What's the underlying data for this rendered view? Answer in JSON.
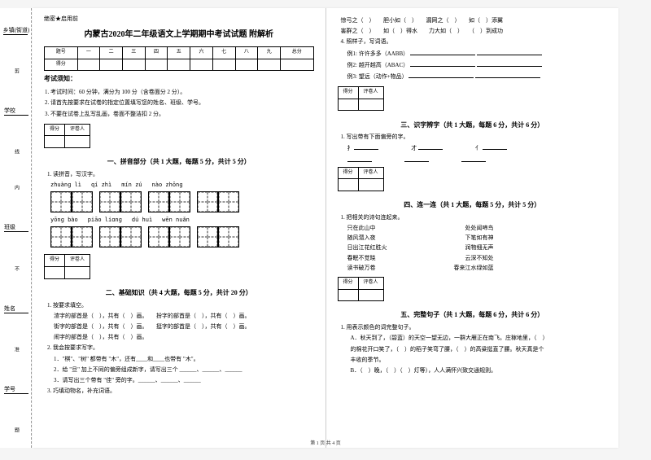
{
  "binding": {
    "seal": "密",
    "village_label": "乡镇(街道)",
    "cut": "剪",
    "school_label": "学校",
    "line": "线",
    "inner": "内",
    "class_label": "班级",
    "no": "不",
    "name_label": "姓名",
    "allow": "准",
    "number_label": "学号",
    "answer": "题"
  },
  "header": {
    "seal": "绝密★启用前",
    "title": "内蒙古2020年二年级语文上学期期中考试试题 附解析"
  },
  "score_table": {
    "headers": [
      "题号",
      "一",
      "二",
      "三",
      "四",
      "五",
      "六",
      "七",
      "八",
      "九",
      "总分"
    ],
    "row_label": "得分"
  },
  "notice": {
    "title": "考试须知：",
    "items": [
      "考试时间：60 分钟，满分为 100 分（含卷面分 2 分）。",
      "请首先按要求在试卷的指定位置填写您的姓名、班级、学号。",
      "不要在试卷上乱写乱画，卷面不整洁扣 2 分。"
    ]
  },
  "scorebox": {
    "col1": "得分",
    "col2": "评卷人"
  },
  "section1": {
    "title": "一、拼音部分（共 1 大题，每题 5 分，共计 5 分）",
    "q1": "1. 读拼音，写汉字。",
    "pinyin_rows": [
      [
        "zhuànɡ lì",
        "qí zhì",
        "mín zú",
        "nào zhōnɡ"
      ],
      [
        "yōnɡ bào",
        "piāo liɑnɡ",
        "dú huì",
        "wēn nuǎn"
      ]
    ]
  },
  "section2": {
    "title": "二、基础知识（共 4 大题，每题 5 分，共计 20 分）",
    "q1_label": "1. 按要求填空。",
    "q1_lines": [
      "渣字的部首是（　），共有（　）画。　　扮字的部首是（　），共有（　）画。",
      "街字的部首是（　），共有（　）画。　　挺字的部首是（　），共有（　）画。",
      "闹字的部首是（　），共有（　）画。"
    ],
    "q2_label": "2. 我会按要求写字。",
    "q2_lines": [
      "1．\"棋\"、\"树\" 都带有 \"木\"，还有____和____也带有 \"木\"。",
      "2．给 \"旦\" 加上不同的偏旁组成新字，请写出三个 ______、______、______",
      "3．请写出三个带有 \"佳\" 旁的字。______、______、______"
    ],
    "q3_label": "3. 巧填动物名，补充词语。"
  },
  "section2_right": {
    "lines": [
      "惊弓之（　）　　胆小如（　）　　漏网之（　）　　如（　）添翼",
      "害群之（　）　　如（　）得水　　力大如（　）　　（　）到成功"
    ],
    "q4_label": "4. 照样子，写词语。",
    "examples": [
      "例1: 许许多多（AABB）",
      "例2: 越开越高（ABAC）",
      "例3: 望远（动作+物品）"
    ]
  },
  "section3": {
    "title": "三、识字辨字（共 1 大题，每题 6 分，共计 6 分）",
    "q1": "1. 写出带有下面偏旁的字。",
    "radicals": [
      "扌",
      "才",
      "亻"
    ]
  },
  "section4": {
    "title": "四、连一连（共 1 大题，每题 5 分，共计 5 分）",
    "q1": "1. 把相关的诗句连起来。",
    "pairs": [
      [
        "只在此山中",
        "处处闻啼鸟"
      ],
      [
        "随风潜入夜",
        "下笔如有神"
      ],
      [
        "日出江花红胜火",
        "润物细无声"
      ],
      [
        "春眠不觉晓",
        "云深不知处"
      ],
      [
        "读书破万卷",
        "春来江水绿如蓝"
      ]
    ]
  },
  "section5": {
    "title": "五、完整句子（共 1 大题，每题 6 分，共计 6 分）",
    "q1": "1. 用表示颜色的词完整句子。",
    "lines": [
      "A．秋天到了，（碧蓝）的天空一望无边，一群大雁正在南飞。庄稼地里，（　）",
      "的棉花开口笑了，（　）的稻子笑弯了腰，（　）的高粱挺直了腰。秋天真是个",
      "丰收的季节。",
      "B．（　）晚，（　）（　）灯等），人人满怀兴致交通规则。"
    ]
  },
  "footer": "第 1 页 共 4 页"
}
